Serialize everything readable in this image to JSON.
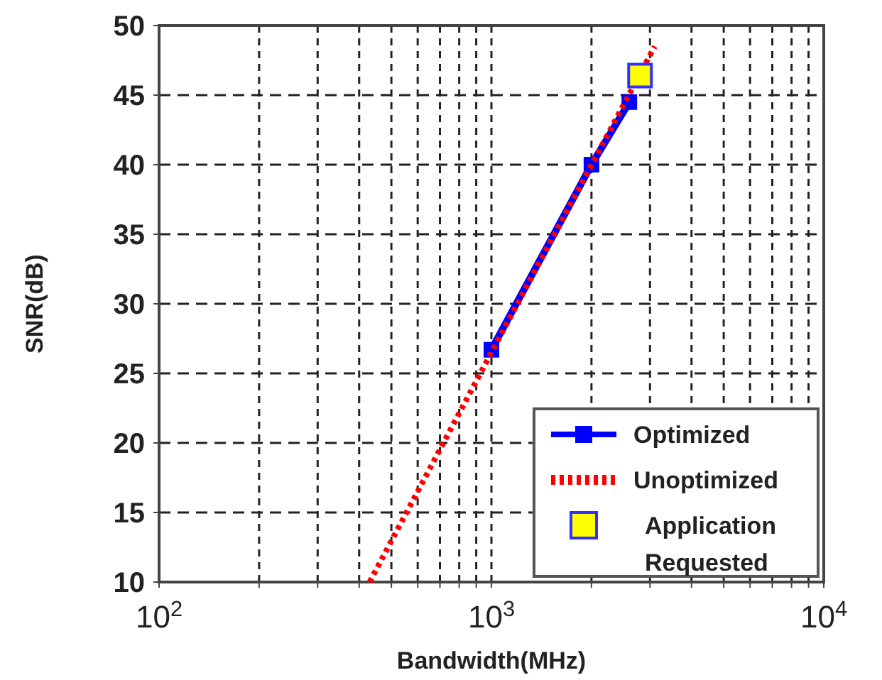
{
  "chart_data": {
    "type": "line",
    "xlabel": "Bandwidth(MHz)",
    "ylabel": "SNR(dB)",
    "log": "x",
    "xlim": [
      100,
      10000
    ],
    "ylim": [
      10,
      50
    ],
    "xticks": [
      {
        "value": 100,
        "label": "10$^{2}$"
      },
      {
        "value": 200,
        "label": null
      },
      {
        "value": 300,
        "label": null
      },
      {
        "value": 400,
        "label": null
      },
      {
        "value": 500,
        "label": null
      },
      {
        "value": 600,
        "label": null
      },
      {
        "value": 700,
        "label": null
      },
      {
        "value": 800,
        "label": null
      },
      {
        "value": 900,
        "label": null
      },
      {
        "value": 1000,
        "label": "10$^{3}$"
      },
      {
        "value": 2000,
        "label": null
      },
      {
        "value": 3000,
        "label": null
      },
      {
        "value": 4000,
        "label": null
      },
      {
        "value": 5000,
        "label": null
      },
      {
        "value": 6000,
        "label": null
      },
      {
        "value": 7000,
        "label": null
      },
      {
        "value": 8000,
        "label": null
      },
      {
        "value": 9000,
        "label": null
      },
      {
        "value": 10000,
        "label": "10$^{4}$"
      }
    ],
    "yticks": [
      10,
      15,
      20,
      25,
      30,
      35,
      40,
      45,
      50
    ],
    "grid": true,
    "legend": "bottom right",
    "series": [
      {
        "name": "Optimized",
        "type": "line",
        "color": "#0000ff",
        "marker": "square",
        "line_style": "solid",
        "x": [
          1000,
          2000,
          2600
        ],
        "values": [
          26.7,
          40,
          44.5
        ]
      },
      {
        "name": "Unoptimized",
        "type": "line",
        "color": "#ff0000",
        "marker": "none",
        "line_style": "dotted",
        "x": [
          430,
          1000,
          3100
        ],
        "values": [
          10,
          26.5,
          48.5
        ]
      },
      {
        "name": "Application Requested",
        "type": "scatter",
        "color": "#ffff00",
        "marker": "square",
        "x": [
          2800
        ],
        "values": [
          46.4
        ]
      }
    ]
  }
}
